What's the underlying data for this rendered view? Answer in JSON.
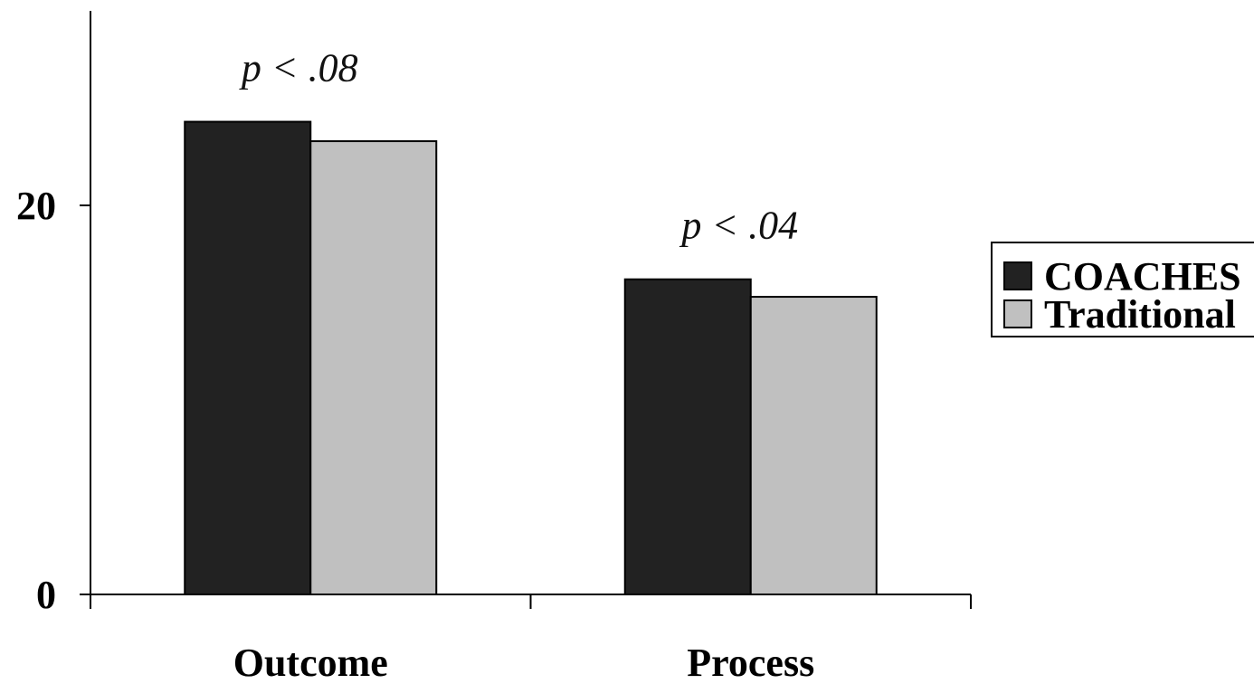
{
  "chart_data": {
    "type": "bar",
    "categories": [
      "Outcome",
      "Process"
    ],
    "series": [
      {
        "name": "COACHES",
        "values": [
          24.3,
          16.2
        ],
        "color": "#222222"
      },
      {
        "name": "Traditional",
        "values": [
          23.3,
          15.3
        ],
        "color": "#c0c0c0"
      }
    ],
    "ylim": [
      0,
      30
    ],
    "yticks": [
      {
        "value": 0,
        "label": "0"
      },
      {
        "value": 20,
        "label": "20"
      }
    ],
    "annotations": [
      {
        "category": "Outcome",
        "text": "p < .08"
      },
      {
        "category": "Process",
        "text": "p < .04"
      }
    ],
    "legend": "right",
    "grid": false
  }
}
